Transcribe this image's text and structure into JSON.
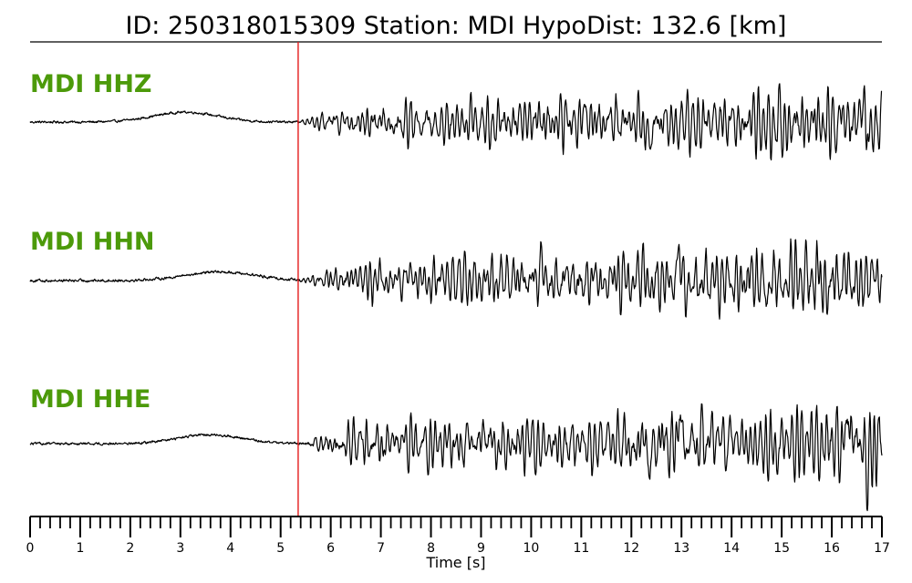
{
  "chart_data": {
    "type": "line",
    "title": "ID: 250318015309   Station: MDI   HypoDist:    132.6 [km]",
    "xlabel": "Time [s]",
    "xlim": [
      0,
      17
    ],
    "major_ticks": [
      0,
      1,
      2,
      3,
      4,
      5,
      6,
      7,
      8,
      9,
      10,
      11,
      12,
      13,
      14,
      15,
      16,
      17
    ],
    "minor_tick_step": 0.2,
    "pick_time": 5.35,
    "colors": {
      "label": "#4c9a0a",
      "trace": "#000000",
      "pick": "#e31a1c"
    },
    "series": [
      {
        "name": "MDI HHZ",
        "noise": 0.03,
        "bump_center": 3.1,
        "bump_width": 0.9,
        "bump_amp": 0.16,
        "amp_start": 0.45,
        "amp_end": 0.75,
        "spikes": [
          [
            16.65,
            1.0
          ],
          [
            16.7,
            -0.95
          ],
          [
            12.35,
            -0.75
          ],
          [
            11.05,
            0.7
          ]
        ]
      },
      {
        "name": "MDI HHN",
        "noise": 0.035,
        "bump_center": 3.8,
        "bump_width": 1.0,
        "bump_amp": 0.14,
        "amp_start": 0.45,
        "amp_end": 0.82,
        "spikes": [
          [
            12.95,
            0.95
          ],
          [
            14.7,
            -0.75
          ],
          [
            10.2,
            0.85
          ]
        ]
      },
      {
        "name": "MDI HHE",
        "noise": 0.03,
        "bump_center": 3.6,
        "bump_width": 0.9,
        "bump_amp": 0.14,
        "amp_start": 0.5,
        "amp_end": 0.8,
        "spikes": [
          [
            12.95,
            1.0
          ],
          [
            12.35,
            -0.95
          ],
          [
            16.35,
            0.9
          ],
          [
            16.7,
            -0.75
          ]
        ]
      }
    ]
  }
}
